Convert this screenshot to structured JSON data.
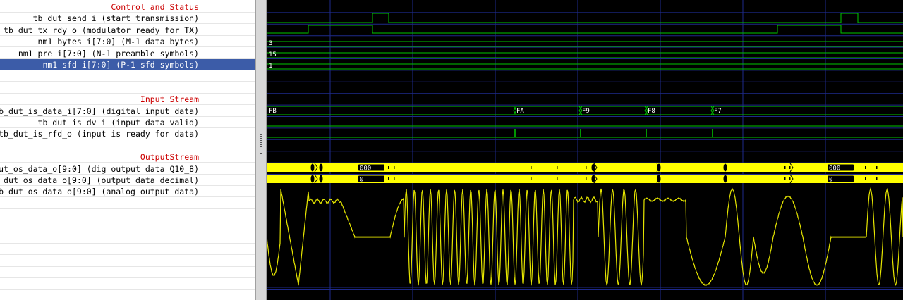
{
  "signals": [
    {
      "label": "Control and Status",
      "header": true
    },
    {
      "label": "tb_dut_send_i (start transmission)"
    },
    {
      "label": "tb_dut_tx_rdy_o (modulator ready for TX)"
    },
    {
      "label": "nm1_bytes_i[7:0] (M-1 data bytes)"
    },
    {
      "label": "nm1_pre_i[7:0] (N-1 preamble symbols)"
    },
    {
      "label": "nm1 sfd i[7:0] (P-1 sfd symbols)",
      "selected": true
    },
    {
      "label": ""
    },
    {
      "label": ""
    },
    {
      "label": "Input Stream",
      "header": true
    },
    {
      "label": "b_dut_is_data_i[7:0] (digital input data)"
    },
    {
      "label": "tb_dut_is_dv_i (input data valid)"
    },
    {
      "label": "tb_dut_is_rfd_o (input is ready for data)"
    },
    {
      "label": ""
    },
    {
      "label": "OutputStream",
      "header": true
    },
    {
      "label": "ut_os_data_o[9:0] (dig output data Q10_8)"
    },
    {
      "label": "_dut_os_data_o[9:0] (output data decimal)"
    },
    {
      "label": "b_dut_os_data_o[9:0] (analog output data)"
    }
  ],
  "bus_values": {
    "nm1_bytes": "3",
    "nm1_pre": "15",
    "nm1_sfd": "1",
    "is_data": [
      "FB",
      "FA",
      "F9",
      "F8",
      "F7"
    ],
    "os_q10": [
      "000",
      "000"
    ],
    "os_dec": [
      "0",
      "0"
    ]
  },
  "colors": {
    "selection": "#3c5ca8",
    "header_text": "#cc0000",
    "wave_bg": "#000000",
    "trace": "#00c800",
    "bus": "#ffff00",
    "analog": "#e6e600",
    "grid": "#1e2a8c"
  }
}
